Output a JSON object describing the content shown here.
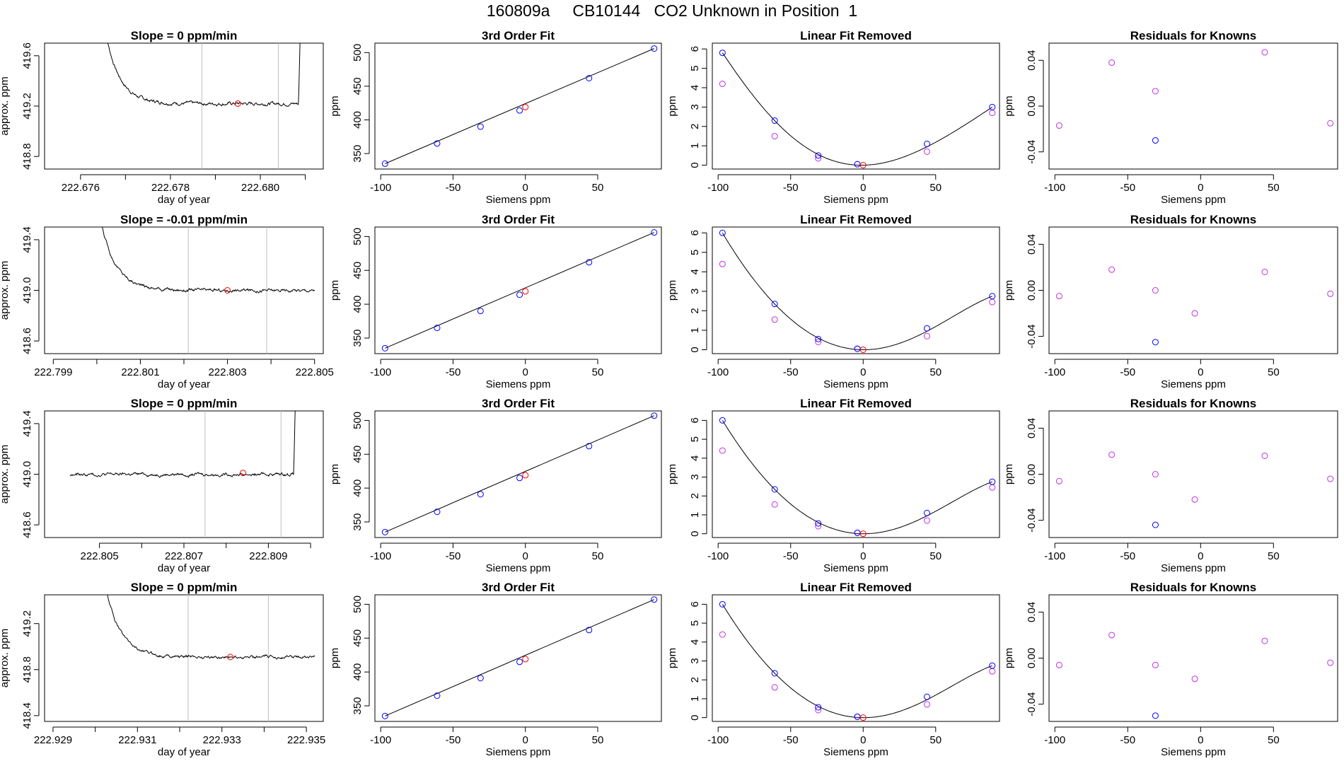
{
  "page": {
    "title": "160809a     CB10144   CO2 Unknown in Position  1"
  },
  "colors": {
    "axis": "#000000",
    "trace": "#000000",
    "vline": "#bebebe",
    "known": "#0000ff",
    "unknown": "#ff0000",
    "linear_removed": "#c030e0",
    "fit_curve": "#000000"
  },
  "chart_data": [
    {
      "type": "line",
      "row": 1,
      "col": 1,
      "title": "Slope =  0  ppm/min",
      "xlabel": "day of year",
      "ylabel": "approx. ppm",
      "xlim": [
        222.6752,
        222.6814
      ],
      "ylim": [
        418.7,
        419.7
      ],
      "xticks": [
        "222.676",
        "222.678",
        "222.680"
      ],
      "xtick_values": [
        222.676,
        222.678,
        222.68
      ],
      "xtick_minor": [
        222.677,
        222.679,
        222.681
      ],
      "yticks": [
        "418.8",
        "419.2",
        "419.6"
      ],
      "ytick_values": [
        418.8,
        419.2,
        419.6
      ],
      "vlines": [
        222.6787,
        222.6804
      ],
      "trace": {
        "start": 222.6765,
        "end": 222.6809,
        "rise_start": 419.9,
        "plateau": 419.22,
        "noise": 0.012,
        "tail_rise_at": 222.68085,
        "tail_to": 419.95
      },
      "marker": {
        "x": 222.6795,
        "y": 419.22
      }
    },
    {
      "type": "scatter",
      "row": 1,
      "col": 2,
      "title": "3rd Order Fit",
      "xlabel": "Siemens ppm",
      "ylabel": "ppm",
      "xlim": [
        -104,
        94
      ],
      "ylim": [
        327,
        514
      ],
      "xticks": [
        "-100",
        "-50",
        "0",
        "50"
      ],
      "xtick_values": [
        -100,
        -50,
        0,
        50
      ],
      "yticks": [
        "350",
        "400",
        "450",
        "500"
      ],
      "ytick_values": [
        350,
        400,
        450,
        500
      ],
      "known_points": {
        "x": [
          -97,
          -61,
          -31,
          -4,
          44,
          89
        ],
        "y": [
          335,
          365,
          390,
          414,
          462,
          506
        ]
      },
      "unknown_point": {
        "x": 0,
        "y": 419
      }
    },
    {
      "type": "scatter",
      "row": 1,
      "col": 3,
      "title": "Linear Fit Removed",
      "xlabel": "Siemens ppm",
      "ylabel": "ppm",
      "xlim": [
        -104,
        94
      ],
      "ylim": [
        -0.2,
        6.3
      ],
      "xticks": [
        "-100",
        "-50",
        "0",
        "50"
      ],
      "xtick_values": [
        -100,
        -50,
        0,
        50
      ],
      "yticks": [
        "0",
        "1",
        "2",
        "3",
        "4",
        "5",
        "6"
      ],
      "ytick_values": [
        0,
        1,
        2,
        3,
        4,
        5,
        6
      ],
      "known_points": {
        "x": [
          -97,
          -61,
          -31,
          -4,
          44,
          89
        ],
        "y": [
          5.8,
          2.3,
          0.5,
          0.05,
          1.1,
          3.0
        ]
      },
      "removed_points": {
        "x": [
          -97,
          -61,
          -31,
          -4,
          44,
          89
        ],
        "y": [
          4.2,
          1.5,
          0.35,
          0.05,
          0.7,
          2.7
        ]
      },
      "unknown_point": {
        "x": 0,
        "y": 0
      },
      "fit_points": {
        "x": [
          -97,
          -61,
          -31,
          0,
          44,
          89
        ],
        "y": [
          5.8,
          2.3,
          0.55,
          0,
          0.95,
          3.0
        ]
      }
    },
    {
      "type": "scatter",
      "row": 1,
      "col": 4,
      "title": "Residuals for Knowns",
      "xlabel": "Siemens ppm",
      "ylabel": "ppm",
      "xlim": [
        -104,
        94
      ],
      "ylim": [
        -0.055,
        0.055
      ],
      "xticks": [
        "-100",
        "-50",
        "0",
        "50"
      ],
      "xtick_values": [
        -100,
        -50,
        0,
        50
      ],
      "yticks": [
        "-0.04",
        "0.00",
        "0.04"
      ],
      "ytick_values": [
        -0.04,
        0,
        0.04
      ],
      "removed_points": {
        "x": [
          -97,
          -61,
          -31,
          44,
          89
        ],
        "y": [
          -0.017,
          0.038,
          0.013,
          0.047,
          -0.015
        ]
      },
      "known_points": {
        "x": [
          -31
        ],
        "y": [
          -0.03
        ]
      }
    },
    {
      "type": "line",
      "row": 2,
      "col": 1,
      "title": "Slope =  -0.01  ppm/min",
      "xlabel": "day of year",
      "ylabel": "approx. ppm",
      "xlim": [
        222.7988,
        222.8052
      ],
      "ylim": [
        418.5,
        419.5
      ],
      "xticks": [
        "222.799",
        "222.801",
        "222.803",
        "222.805"
      ],
      "xtick_values": [
        222.799,
        222.801,
        222.803,
        222.805
      ],
      "xtick_minor": [
        222.8,
        222.802,
        222.804
      ],
      "yticks": [
        "418.6",
        "419.0",
        "419.4"
      ],
      "ytick_values": [
        418.6,
        419,
        419.4
      ],
      "vlines": [
        222.8021,
        222.8039
      ],
      "trace": {
        "start": 222.8,
        "end": 222.805,
        "rise_start": 419.7,
        "plateau": 419.0,
        "noise": 0.012
      },
      "marker": {
        "x": 222.803,
        "y": 419.0
      }
    },
    {
      "type": "scatter",
      "row": 2,
      "col": 2,
      "title": "3rd Order Fit",
      "xlabel": "Siemens ppm",
      "ylabel": "ppm",
      "xlim": [
        -104,
        94
      ],
      "ylim": [
        327,
        514
      ],
      "xticks": [
        "-100",
        "-50",
        "0",
        "50"
      ],
      "xtick_values": [
        -100,
        -50,
        0,
        50
      ],
      "yticks": [
        "350",
        "400",
        "450",
        "500"
      ],
      "ytick_values": [
        350,
        400,
        450,
        500
      ],
      "known_points": {
        "x": [
          -97,
          -61,
          -31,
          -4,
          44,
          89
        ],
        "y": [
          335,
          365,
          390,
          414,
          462,
          506
        ]
      },
      "unknown_point": {
        "x": 0,
        "y": 419
      }
    },
    {
      "type": "scatter",
      "row": 2,
      "col": 3,
      "title": "Linear Fit Removed",
      "xlabel": "Siemens ppm",
      "ylabel": "ppm",
      "xlim": [
        -104,
        94
      ],
      "ylim": [
        -0.2,
        6.3
      ],
      "xticks": [
        "-100",
        "-50",
        "0",
        "50"
      ],
      "xtick_values": [
        -100,
        -50,
        0,
        50
      ],
      "yticks": [
        "0",
        "1",
        "2",
        "3",
        "4",
        "5",
        "6"
      ],
      "ytick_values": [
        0,
        1,
        2,
        3,
        4,
        5,
        6
      ],
      "known_points": {
        "x": [
          -97,
          -61,
          -31,
          -4,
          44,
          89
        ],
        "y": [
          6.0,
          2.35,
          0.55,
          0.05,
          1.1,
          2.75
        ]
      },
      "removed_points": {
        "x": [
          -97,
          -61,
          -31,
          -4,
          44,
          89
        ],
        "y": [
          4.4,
          1.55,
          0.4,
          0.05,
          0.7,
          2.45
        ]
      },
      "unknown_point": {
        "x": 0,
        "y": 0
      },
      "fit_points": {
        "x": [
          -97,
          -61,
          -31,
          0,
          44,
          89
        ],
        "y": [
          6.0,
          2.35,
          0.6,
          0,
          0.95,
          2.75
        ]
      }
    },
    {
      "type": "scatter",
      "row": 2,
      "col": 4,
      "title": "Residuals for Knowns",
      "xlabel": "Siemens ppm",
      "ylabel": "ppm",
      "xlim": [
        -104,
        94
      ],
      "ylim": [
        -0.055,
        0.055
      ],
      "xticks": [
        "-100",
        "-50",
        "0",
        "50"
      ],
      "xtick_values": [
        -100,
        -50,
        0,
        50
      ],
      "yticks": [
        "-0.04",
        "0.00",
        "0.04"
      ],
      "ytick_values": [
        -0.04,
        0,
        0.04
      ],
      "removed_points": {
        "x": [
          -97,
          -61,
          -31,
          -4,
          44,
          89
        ],
        "y": [
          -0.005,
          0.018,
          0.0,
          -0.02,
          0.016,
          -0.003
        ]
      },
      "known_points": {
        "x": [
          -31
        ],
        "y": [
          -0.045
        ]
      }
    },
    {
      "type": "line",
      "row": 3,
      "col": 1,
      "title": "Slope =  0  ppm/min",
      "xlabel": "day of year",
      "ylabel": "approx. ppm",
      "xlim": [
        222.8037,
        222.8103
      ],
      "ylim": [
        418.5,
        419.5
      ],
      "xticks": [
        "222.805",
        "222.807",
        "222.809"
      ],
      "xtick_values": [
        222.805,
        222.807,
        222.809
      ],
      "xtick_minor": [
        222.806,
        222.808,
        222.81
      ],
      "yticks": [
        "418.6",
        "419.0",
        "419.4"
      ],
      "ytick_values": [
        418.6,
        419,
        419.4
      ],
      "vlines": [
        222.8075,
        222.8093
      ],
      "trace": {
        "start": 222.8043,
        "end": 222.80965,
        "rise_start": 418.99,
        "plateau": 419.0,
        "noise": 0.012,
        "tail_rise_at": 222.8096,
        "tail_to": 419.75
      },
      "marker": {
        "x": 222.8084,
        "y": 419.01
      }
    },
    {
      "type": "scatter",
      "row": 3,
      "col": 2,
      "title": "3rd Order Fit",
      "xlabel": "Siemens ppm",
      "ylabel": "ppm",
      "xlim": [
        -104,
        94
      ],
      "ylim": [
        327,
        514
      ],
      "xticks": [
        "-100",
        "-50",
        "0",
        "50"
      ],
      "xtick_values": [
        -100,
        -50,
        0,
        50
      ],
      "yticks": [
        "350",
        "400",
        "450",
        "500"
      ],
      "ytick_values": [
        350,
        400,
        450,
        500
      ],
      "known_points": {
        "x": [
          -97,
          -61,
          -31,
          -4,
          44,
          89
        ],
        "y": [
          335,
          365,
          391,
          415,
          462,
          507
        ]
      },
      "unknown_point": {
        "x": 0,
        "y": 419
      }
    },
    {
      "type": "scatter",
      "row": 3,
      "col": 3,
      "title": "Linear Fit Removed",
      "xlabel": "Siemens ppm",
      "ylabel": "ppm",
      "xlim": [
        -104,
        94
      ],
      "ylim": [
        -0.2,
        6.5
      ],
      "xticks": [
        "-100",
        "-50",
        "0",
        "50"
      ],
      "xtick_values": [
        -100,
        -50,
        0,
        50
      ],
      "yticks": [
        "0",
        "1",
        "2",
        "3",
        "4",
        "5",
        "6"
      ],
      "ytick_values": [
        0,
        1,
        2,
        3,
        4,
        5,
        6
      ],
      "known_points": {
        "x": [
          -97,
          -61,
          -31,
          -4,
          44,
          89
        ],
        "y": [
          6.0,
          2.35,
          0.55,
          0.05,
          1.1,
          2.75
        ]
      },
      "removed_points": {
        "x": [
          -97,
          -61,
          -31,
          -4,
          44,
          89
        ],
        "y": [
          4.4,
          1.55,
          0.4,
          0.05,
          0.7,
          2.45
        ]
      },
      "unknown_point": {
        "x": 0,
        "y": 0
      },
      "fit_points": {
        "x": [
          -97,
          -61,
          -31,
          0,
          44,
          89
        ],
        "y": [
          6.0,
          2.35,
          0.6,
          0,
          0.95,
          2.75
        ]
      }
    },
    {
      "type": "scatter",
      "row": 3,
      "col": 4,
      "title": "Residuals for Knowns",
      "xlabel": "Siemens ppm",
      "ylabel": "ppm",
      "xlim": [
        -104,
        94
      ],
      "ylim": [
        -0.055,
        0.055
      ],
      "xticks": [
        "-100",
        "-50",
        "0",
        "50"
      ],
      "xtick_values": [
        -100,
        -50,
        0,
        50
      ],
      "yticks": [
        "-0.04",
        "0.00",
        "0.04"
      ],
      "ytick_values": [
        -0.04,
        0,
        0.04
      ],
      "removed_points": {
        "x": [
          -97,
          -61,
          -31,
          -4,
          44,
          89
        ],
        "y": [
          -0.006,
          0.017,
          0.0,
          -0.022,
          0.016,
          -0.004
        ]
      },
      "known_points": {
        "x": [
          -31
        ],
        "y": [
          -0.044
        ]
      }
    },
    {
      "type": "line",
      "row": 4,
      "col": 1,
      "title": "Slope =  0  ppm/min",
      "xlabel": "day of year",
      "ylabel": "approx. ppm",
      "xlim": [
        222.9288,
        222.9354
      ],
      "ylim": [
        418.35,
        419.45
      ],
      "xticks": [
        "222.929",
        "222.931",
        "222.933",
        "222.935"
      ],
      "xtick_values": [
        222.929,
        222.931,
        222.933,
        222.935
      ],
      "xtick_minor": [
        222.93,
        222.932,
        222.934
      ],
      "yticks": [
        "418.4",
        "418.8",
        "419.2"
      ],
      "ytick_values": [
        418.4,
        418.8,
        419.2
      ],
      "vlines": [
        222.9322,
        222.9341
      ],
      "trace": {
        "start": 222.9302,
        "end": 222.9352,
        "rise_start": 419.6,
        "plateau": 418.91,
        "noise": 0.012
      },
      "marker": {
        "x": 222.9332,
        "y": 418.91
      }
    },
    {
      "type": "scatter",
      "row": 4,
      "col": 2,
      "title": "3rd Order Fit",
      "xlabel": "Siemens ppm",
      "ylabel": "ppm",
      "xlim": [
        -104,
        94
      ],
      "ylim": [
        327,
        514
      ],
      "xticks": [
        "-100",
        "-50",
        "0",
        "50"
      ],
      "xtick_values": [
        -100,
        -50,
        0,
        50
      ],
      "yticks": [
        "350",
        "400",
        "450",
        "500"
      ],
      "ytick_values": [
        350,
        400,
        450,
        500
      ],
      "known_points": {
        "x": [
          -97,
          -61,
          -31,
          -4,
          44,
          89
        ],
        "y": [
          335,
          365,
          391,
          415,
          462,
          507
        ]
      },
      "unknown_point": {
        "x": 0,
        "y": 419
      }
    },
    {
      "type": "scatter",
      "row": 4,
      "col": 3,
      "title": "Linear Fit Removed",
      "xlabel": "Siemens ppm",
      "ylabel": "ppm",
      "xlim": [
        -104,
        94
      ],
      "ylim": [
        -0.2,
        6.5
      ],
      "xticks": [
        "-100",
        "-50",
        "0",
        "50"
      ],
      "xtick_values": [
        -100,
        -50,
        0,
        50
      ],
      "yticks": [
        "0",
        "1",
        "2",
        "3",
        "4",
        "5",
        "6"
      ],
      "ytick_values": [
        0,
        1,
        2,
        3,
        4,
        5,
        6
      ],
      "known_points": {
        "x": [
          -97,
          -61,
          -31,
          -4,
          44,
          89
        ],
        "y": [
          6.0,
          2.35,
          0.55,
          0.05,
          1.1,
          2.75
        ]
      },
      "removed_points": {
        "x": [
          -97,
          -61,
          -31,
          -4,
          44,
          89
        ],
        "y": [
          4.4,
          1.6,
          0.4,
          0.05,
          0.7,
          2.45
        ]
      },
      "unknown_point": {
        "x": 0,
        "y": 0
      },
      "fit_points": {
        "x": [
          -97,
          -61,
          -31,
          0,
          44,
          89
        ],
        "y": [
          6.0,
          2.35,
          0.6,
          0,
          0.95,
          2.75
        ]
      }
    },
    {
      "type": "scatter",
      "row": 4,
      "col": 4,
      "title": "Residuals for Knowns",
      "xlabel": "Siemens ppm",
      "ylabel": "ppm",
      "xlim": [
        -104,
        94
      ],
      "ylim": [
        -0.055,
        0.055
      ],
      "xticks": [
        "-100",
        "-50",
        "0",
        "50"
      ],
      "xtick_values": [
        -100,
        -50,
        0,
        50
      ],
      "yticks": [
        "-0.04",
        "0.00",
        "0.04"
      ],
      "ytick_values": [
        -0.04,
        0,
        0.04
      ],
      "removed_points": {
        "x": [
          -97,
          -61,
          -31,
          -4,
          44,
          89
        ],
        "y": [
          -0.006,
          0.02,
          -0.006,
          -0.018,
          0.015,
          -0.004
        ]
      },
      "known_points": {
        "x": [
          -31
        ],
        "y": [
          -0.05
        ]
      }
    }
  ]
}
